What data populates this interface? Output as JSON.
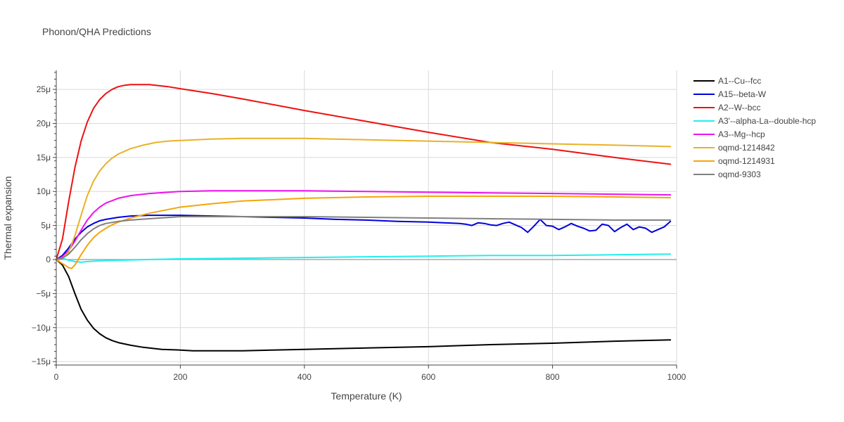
{
  "chart_data": {
    "type": "line",
    "title": "Phonon/QHA Predictions",
    "xlabel": "Temperature (K)",
    "ylabel": "Thermal expansion",
    "xlim": [
      0,
      1000
    ],
    "ylim": [
      -1.55e-05,
      2.78e-05
    ],
    "x_ticks": [
      0,
      200,
      400,
      600,
      800,
      1000
    ],
    "x_tick_labels": [
      "0",
      "200",
      "400",
      "600",
      "800",
      "1000"
    ],
    "y_ticks": [
      -1.5e-05,
      -1e-05,
      -5e-06,
      0,
      5e-06,
      1e-05,
      1.5e-05,
      2e-05,
      2.5e-05
    ],
    "y_tick_labels": [
      "−15μ",
      "−10μ",
      "−5μ",
      "0",
      "5μ",
      "10μ",
      "15μ",
      "20μ",
      "25μ"
    ],
    "grid": true,
    "legend_position": "right",
    "series": [
      {
        "name": "A1--Cu--fcc",
        "color": "#000000",
        "x": [
          0,
          10,
          20,
          30,
          40,
          50,
          60,
          70,
          80,
          90,
          100,
          120,
          140,
          170,
          200,
          220,
          250,
          300,
          400,
          500,
          600,
          700,
          800,
          900,
          990
        ],
        "y": [
          0,
          -8e-07,
          -2.5e-06,
          -5e-06,
          -7.3e-06,
          -8.9e-06,
          -1.01e-05,
          -1.09e-05,
          -1.15e-05,
          -1.19e-05,
          -1.22e-05,
          -1.26e-05,
          -1.29e-05,
          -1.32e-05,
          -1.33e-05,
          -1.34e-05,
          -1.34e-05,
          -1.34e-05,
          -1.32e-05,
          -1.3e-05,
          -1.28e-05,
          -1.25e-05,
          -1.23e-05,
          -1.2e-05,
          -1.18e-05
        ]
      },
      {
        "name": "A15--beta-W",
        "color": "#0000dd",
        "x": [
          0,
          10,
          20,
          30,
          40,
          50,
          60,
          70,
          80,
          100,
          120,
          150,
          200,
          250,
          300,
          350,
          400,
          450,
          500,
          550,
          600,
          650,
          660,
          670,
          680,
          690,
          700,
          710,
          720,
          730,
          740,
          750,
          760,
          770,
          780,
          790,
          800,
          810,
          820,
          830,
          840,
          850,
          860,
          870,
          880,
          890,
          900,
          910,
          920,
          930,
          940,
          950,
          960,
          970,
          980,
          990
        ],
        "y": [
          0,
          6e-07,
          1.7e-06,
          3e-06,
          4e-06,
          4.8e-06,
          5.3e-06,
          5.7e-06,
          5.9e-06,
          6.2e-06,
          6.4e-06,
          6.5e-06,
          6.5e-06,
          6.4e-06,
          6.3e-06,
          6.2e-06,
          6.1e-06,
          5.9e-06,
          5.8e-06,
          5.6e-06,
          5.5e-06,
          5.3e-06,
          5.2e-06,
          5e-06,
          5.4e-06,
          5.3e-06,
          5.1e-06,
          5e-06,
          5.3e-06,
          5.5e-06,
          5.1e-06,
          4.7e-06,
          4e-06,
          4.9e-06,
          5.9e-06,
          5e-06,
          4.9e-06,
          4.4e-06,
          4.8e-06,
          5.3e-06,
          4.9e-06,
          4.6e-06,
          4.2e-06,
          4.3e-06,
          5.2e-06,
          5e-06,
          4.1e-06,
          4.7e-06,
          5.2e-06,
          4.4e-06,
          4.8e-06,
          4.6e-06,
          4e-06,
          4.4e-06,
          4.8e-06,
          5.6e-06
        ]
      },
      {
        "name": "A2--W--bcc",
        "color": "#ee1111",
        "x": [
          0,
          10,
          20,
          30,
          40,
          50,
          60,
          70,
          80,
          90,
          100,
          110,
          120,
          130,
          140,
          150,
          160,
          180,
          200,
          250,
          300,
          400,
          500,
          600,
          700,
          800,
          900,
          990
        ],
        "y": [
          0,
          3e-06,
          8.5e-06,
          1.35e-05,
          1.74e-05,
          2.02e-05,
          2.22e-05,
          2.35e-05,
          2.44e-05,
          2.5e-05,
          2.54e-05,
          2.56e-05,
          2.57e-05,
          2.57e-05,
          2.57e-05,
          2.57e-05,
          2.56e-05,
          2.54e-05,
          2.51e-05,
          2.44e-05,
          2.36e-05,
          2.19e-05,
          2.03e-05,
          1.87e-05,
          1.72e-05,
          1.62e-05,
          1.5e-05,
          1.4e-05
        ]
      },
      {
        "name": "A3'--alpha-La--double-hcp",
        "color": "#22eeee",
        "x": [
          0,
          10,
          20,
          30,
          40,
          50,
          70,
          100,
          150,
          200,
          300,
          400,
          500,
          600,
          700,
          800,
          900,
          990
        ],
        "y": [
          0,
          2e-07,
          -1e-07,
          -3e-07,
          -4e-07,
          -3e-07,
          -2e-07,
          -1e-07,
          0,
          1e-07,
          2e-07,
          3e-07,
          4e-07,
          5e-07,
          6e-07,
          6e-07,
          7e-07,
          8e-07
        ]
      },
      {
        "name": "A3--Mg--hcp",
        "color": "#ee11ee",
        "x": [
          0,
          10,
          20,
          30,
          40,
          50,
          60,
          70,
          80,
          100,
          120,
          150,
          200,
          250,
          300,
          400,
          500,
          600,
          700,
          800,
          900,
          990
        ],
        "y": [
          0,
          4e-07,
          1.3e-06,
          2.7e-06,
          4.3e-06,
          5.8e-06,
          6.9e-06,
          7.7e-06,
          8.3e-06,
          9e-06,
          9.4e-06,
          9.7e-06,
          1e-05,
          1.01e-05,
          1.01e-05,
          1.01e-05,
          1e-05,
          9.9e-06,
          9.8e-06,
          9.7e-06,
          9.6e-06,
          9.5e-06
        ]
      },
      {
        "name": "oqmd-1214842",
        "color": "#e8b22a",
        "x": [
          0,
          10,
          20,
          30,
          40,
          50,
          60,
          70,
          80,
          90,
          100,
          110,
          120,
          140,
          160,
          180,
          200,
          250,
          300,
          400,
          500,
          600,
          700,
          800,
          900,
          990
        ],
        "y": [
          0,
          2e-07,
          1.1e-06,
          3.5e-06,
          6.5e-06,
          9.4e-06,
          1.15e-05,
          1.3e-05,
          1.41e-05,
          1.49e-05,
          1.55e-05,
          1.59e-05,
          1.63e-05,
          1.68e-05,
          1.72e-05,
          1.74e-05,
          1.75e-05,
          1.77e-05,
          1.78e-05,
          1.78e-05,
          1.76e-05,
          1.74e-05,
          1.72e-05,
          1.7e-05,
          1.68e-05,
          1.66e-05
        ]
      },
      {
        "name": "oqmd-1214931",
        "color": "#f5a50a",
        "x": [
          0,
          10,
          20,
          25,
          30,
          40,
          50,
          60,
          70,
          80,
          90,
          100,
          120,
          150,
          200,
          250,
          300,
          400,
          500,
          600,
          700,
          800,
          900,
          990
        ],
        "y": [
          0,
          -6e-07,
          -1.2e-06,
          -1.3e-06,
          -8e-07,
          7e-07,
          2.1e-06,
          3.2e-06,
          4e-06,
          4.6e-06,
          5.1e-06,
          5.5e-06,
          6.1e-06,
          6.8e-06,
          7.7e-06,
          8.2e-06,
          8.6e-06,
          9e-06,
          9.2e-06,
          9.3e-06,
          9.3e-06,
          9.3e-06,
          9.2e-06,
          9.1e-06
        ]
      },
      {
        "name": "oqmd-9303",
        "color": "#808080",
        "x": [
          0,
          10,
          20,
          30,
          40,
          50,
          60,
          70,
          80,
          100,
          120,
          150,
          200,
          300,
          400,
          500,
          600,
          700,
          800,
          900,
          990
        ],
        "y": [
          0,
          2e-07,
          8e-07,
          1.8e-06,
          2.9e-06,
          3.8e-06,
          4.5e-06,
          5e-06,
          5.3e-06,
          5.6e-06,
          5.8e-06,
          6e-06,
          6.3e-06,
          6.3e-06,
          6.3e-06,
          6.2e-06,
          6.1e-06,
          6e-06,
          5.9e-06,
          5.8e-06,
          5.8e-06
        ]
      }
    ]
  }
}
